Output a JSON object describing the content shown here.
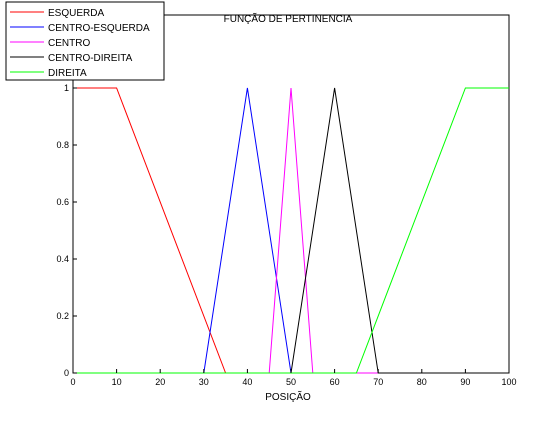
{
  "chart_data": {
    "type": "line",
    "title": "FUNÇÃO DE PERTINENCIA",
    "xlabel": "POSIÇÃO",
    "ylabel": "",
    "xlim": [
      0,
      100
    ],
    "ylim": [
      0,
      1
    ],
    "xticks": [
      0,
      10,
      20,
      30,
      40,
      50,
      60,
      70,
      80,
      90,
      100
    ],
    "yticks": [
      0,
      0.2,
      0.4,
      0.6,
      0.8,
      1
    ],
    "ytick_labels": [
      "0",
      "0.2",
      "0.4",
      "0.6",
      "0.8",
      "1"
    ],
    "grid": false,
    "legend_position": "top-left",
    "series": [
      {
        "name": "ESQUERDA",
        "color": "#ff0000",
        "x": [
          0,
          10,
          35,
          100
        ],
        "y": [
          1,
          1,
          0,
          0
        ]
      },
      {
        "name": "CENTRO-ESQUERDA",
        "color": "#0000ff",
        "x": [
          0,
          30,
          40,
          50,
          100
        ],
        "y": [
          0,
          0,
          1,
          0,
          0
        ]
      },
      {
        "name": "CENTRO",
        "color": "#ff00ff",
        "x": [
          0,
          45,
          50,
          55,
          100
        ],
        "y": [
          0,
          0,
          1,
          0,
          0
        ]
      },
      {
        "name": "CENTRO-DIREITA",
        "color": "#000000",
        "x": [
          0,
          50,
          60,
          70,
          100
        ],
        "y": [
          0,
          0,
          1,
          0,
          0
        ]
      },
      {
        "name": "DIREITA",
        "color": "#00ff00",
        "x": [
          0,
          65,
          90,
          100
        ],
        "y": [
          0,
          0,
          1,
          1
        ]
      }
    ]
  }
}
